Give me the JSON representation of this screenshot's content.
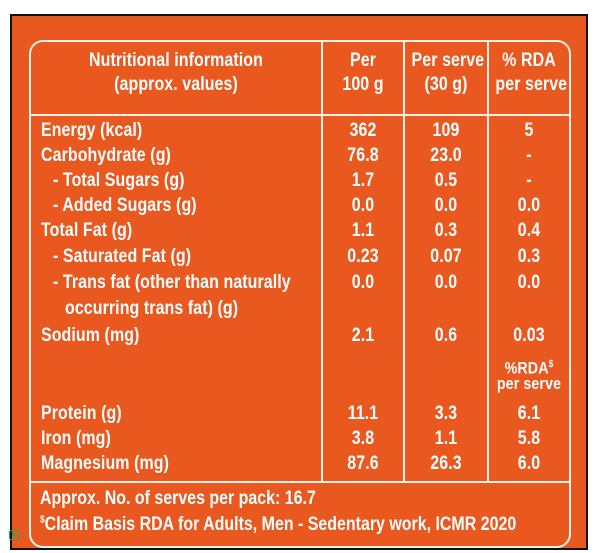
{
  "header": {
    "col1_line1": "Nutritional information",
    "col1_line2": "(approx. values)",
    "col2_line1": "Per",
    "col2_line2": "100 g",
    "col3_line1": "Per serve",
    "col3_line2": "(30 g)",
    "col4_line1": "% RDA",
    "col4_line2": "per serve"
  },
  "rows": [
    {
      "label": "Energy (kcal)",
      "per100": "362",
      "perserve": "109",
      "rda": "5"
    },
    {
      "label": "Carbohydrate (g)",
      "per100": "76.8",
      "perserve": "23.0",
      "rda": "-"
    },
    {
      "label": "- Total Sugars (g)",
      "per100": "1.7",
      "perserve": "0.5",
      "rda": "-"
    },
    {
      "label": "- Added Sugars (g)",
      "per100": "0.0",
      "perserve": "0.0",
      "rda": "0.0"
    },
    {
      "label": "Total Fat (g)",
      "per100": "1.1",
      "perserve": "0.3",
      "rda": "0.4"
    },
    {
      "label": "- Saturated Fat (g)",
      "per100": "0.23",
      "perserve": "0.07",
      "rda": "0.3"
    },
    {
      "label": "- Trans fat (other than naturally",
      "label2": "occurring trans fat) (g)",
      "per100": "0.0",
      "perserve": "0.0",
      "rda": "0.0"
    },
    {
      "label": "Sodium (mg)",
      "per100": "2.1",
      "perserve": "0.6",
      "rda": "0.03"
    }
  ],
  "subheader": {
    "line1": "%RDA",
    "sup": "$",
    "line2": "per serve"
  },
  "rows2": [
    {
      "label": "Protein (g)",
      "per100": "11.1",
      "perserve": "3.3",
      "rda": "6.1"
    },
    {
      "label": "Iron (mg)",
      "per100": "3.8",
      "perserve": "1.1",
      "rda": "5.8"
    },
    {
      "label": "Magnesium (mg)",
      "per100": "87.6",
      "perserve": "26.3",
      "rda": "6.0"
    }
  ],
  "footer": {
    "serves": "Approx. No. of serves per pack: 16.7",
    "claim_sup": "$",
    "claim": "Claim Basis RDA for Adults, Men - Sedentary work, ICMR 2020"
  },
  "colors": {
    "background": "#e8581f",
    "text": "#ffffff"
  },
  "icons": [
    "corner-square-icon"
  ]
}
